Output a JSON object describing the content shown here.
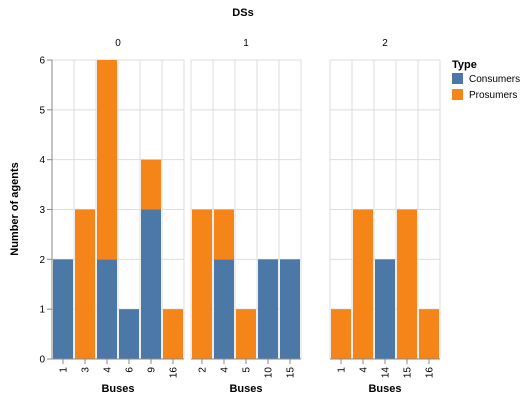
{
  "colors": {
    "Consumers": "#4c78a8",
    "Prosumers": "#f58518"
  },
  "chart_data": {
    "type": "bar",
    "stacked": true,
    "title": "DSs",
    "xlabel": "Buses",
    "ylabel": "Number of agents",
    "ylim": [
      0,
      6
    ],
    "yticks": [
      "0",
      "1",
      "2",
      "3",
      "4",
      "5",
      "6"
    ],
    "grid": true,
    "legend": {
      "title": "Type",
      "placement": "right",
      "entries": [
        "Consumers",
        "Prosumers"
      ]
    },
    "facets": [
      {
        "label": "0",
        "categories": [
          "1",
          "3",
          "4",
          "6",
          "9",
          "16"
        ],
        "series": [
          {
            "name": "Consumers",
            "values": [
              2,
              0,
              2,
              1,
              3,
              0
            ]
          },
          {
            "name": "Prosumers",
            "values": [
              0,
              3,
              4,
              0,
              1,
              1
            ]
          }
        ]
      },
      {
        "label": "1",
        "categories": [
          "2",
          "4",
          "5",
          "10",
          "15"
        ],
        "series": [
          {
            "name": "Consumers",
            "values": [
              0,
              2,
              0,
              2,
              2
            ]
          },
          {
            "name": "Prosumers",
            "values": [
              3,
              1,
              1,
              0,
              0
            ]
          }
        ]
      },
      {
        "label": "2",
        "categories": [
          "1",
          "4",
          "14",
          "15",
          "16"
        ],
        "series": [
          {
            "name": "Consumers",
            "values": [
              0,
              0,
              2,
              0,
              0
            ]
          },
          {
            "name": "Prosumers",
            "values": [
              1,
              3,
              0,
              3,
              1
            ]
          }
        ]
      }
    ]
  }
}
